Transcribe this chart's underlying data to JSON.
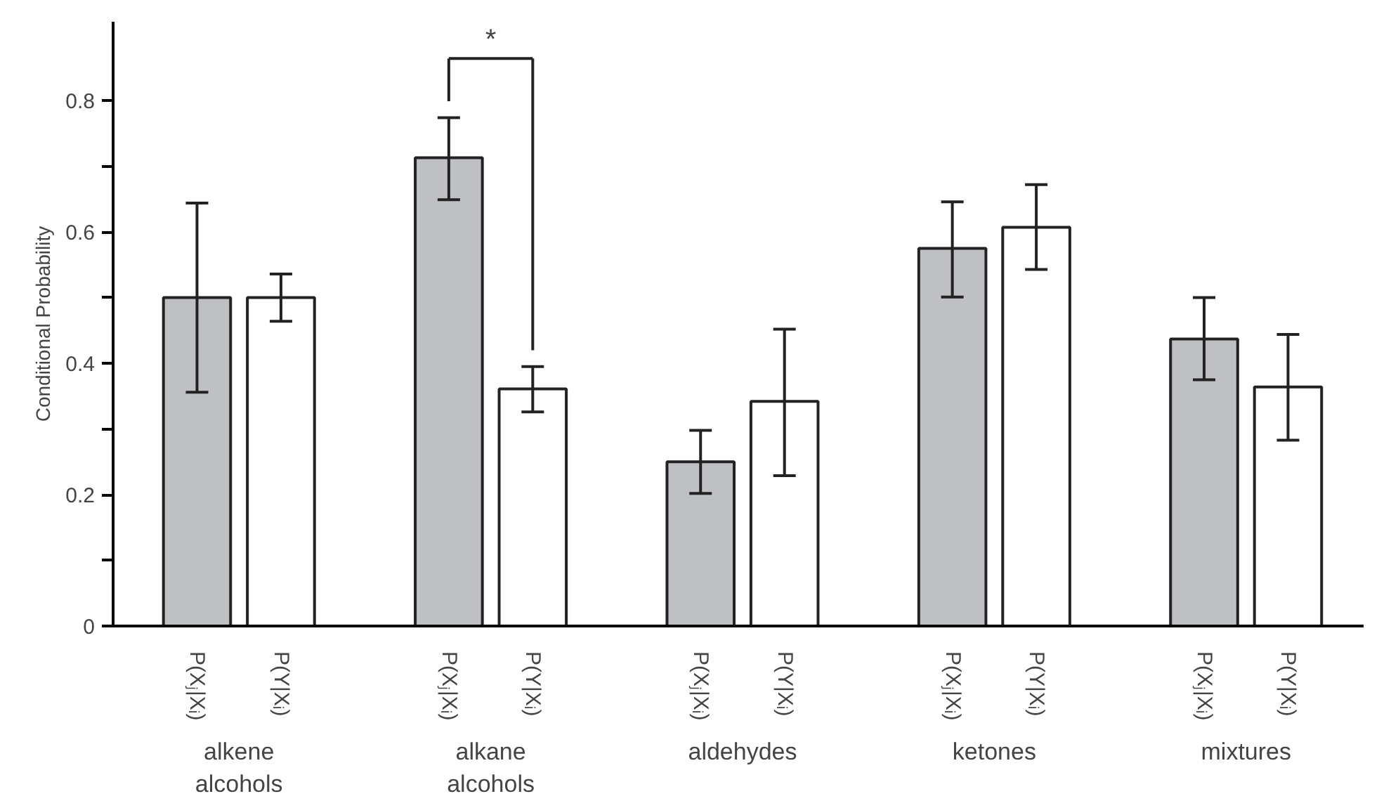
{
  "chart_data": {
    "type": "bar",
    "ylabel": "Conditional Probability",
    "categories": [
      "alkene\nalcohols",
      "alkane\nalcohols",
      "aldehydes",
      "ketones",
      "mixtures"
    ],
    "series": [
      {
        "name": "P(Xⱼ|Xᵢ)",
        "color": "#bfc0c4",
        "values": [
          0.5,
          0.713,
          0.25,
          0.575,
          0.437
        ],
        "errors": [
          [
            0.356,
            0.644
          ],
          [
            0.649,
            0.774
          ],
          [
            0.202,
            0.298
          ],
          [
            0.501,
            0.646
          ],
          [
            0.375,
            0.5
          ]
        ]
      },
      {
        "name": "P(Y|Xᵢ)",
        "color": "#ffffff",
        "values": [
          0.5,
          0.361,
          0.342,
          0.607,
          0.364
        ],
        "errors": [
          [
            0.464,
            0.536
          ],
          [
            0.326,
            0.395
          ],
          [
            0.229,
            0.452
          ],
          [
            0.543,
            0.672
          ],
          [
            0.283,
            0.444
          ]
        ]
      }
    ],
    "ylim": [
      0,
      0.92
    ],
    "yticks": [
      0,
      {
        "value": 0.1,
        "label": null
      },
      0.2,
      {
        "value": 0.3,
        "label": null
      },
      0.4,
      {
        "value": 0.5,
        "label": null
      },
      0.6,
      {
        "value": 0.7,
        "label": null
      },
      0.8
    ],
    "annotations": [
      "*"
    ]
  }
}
